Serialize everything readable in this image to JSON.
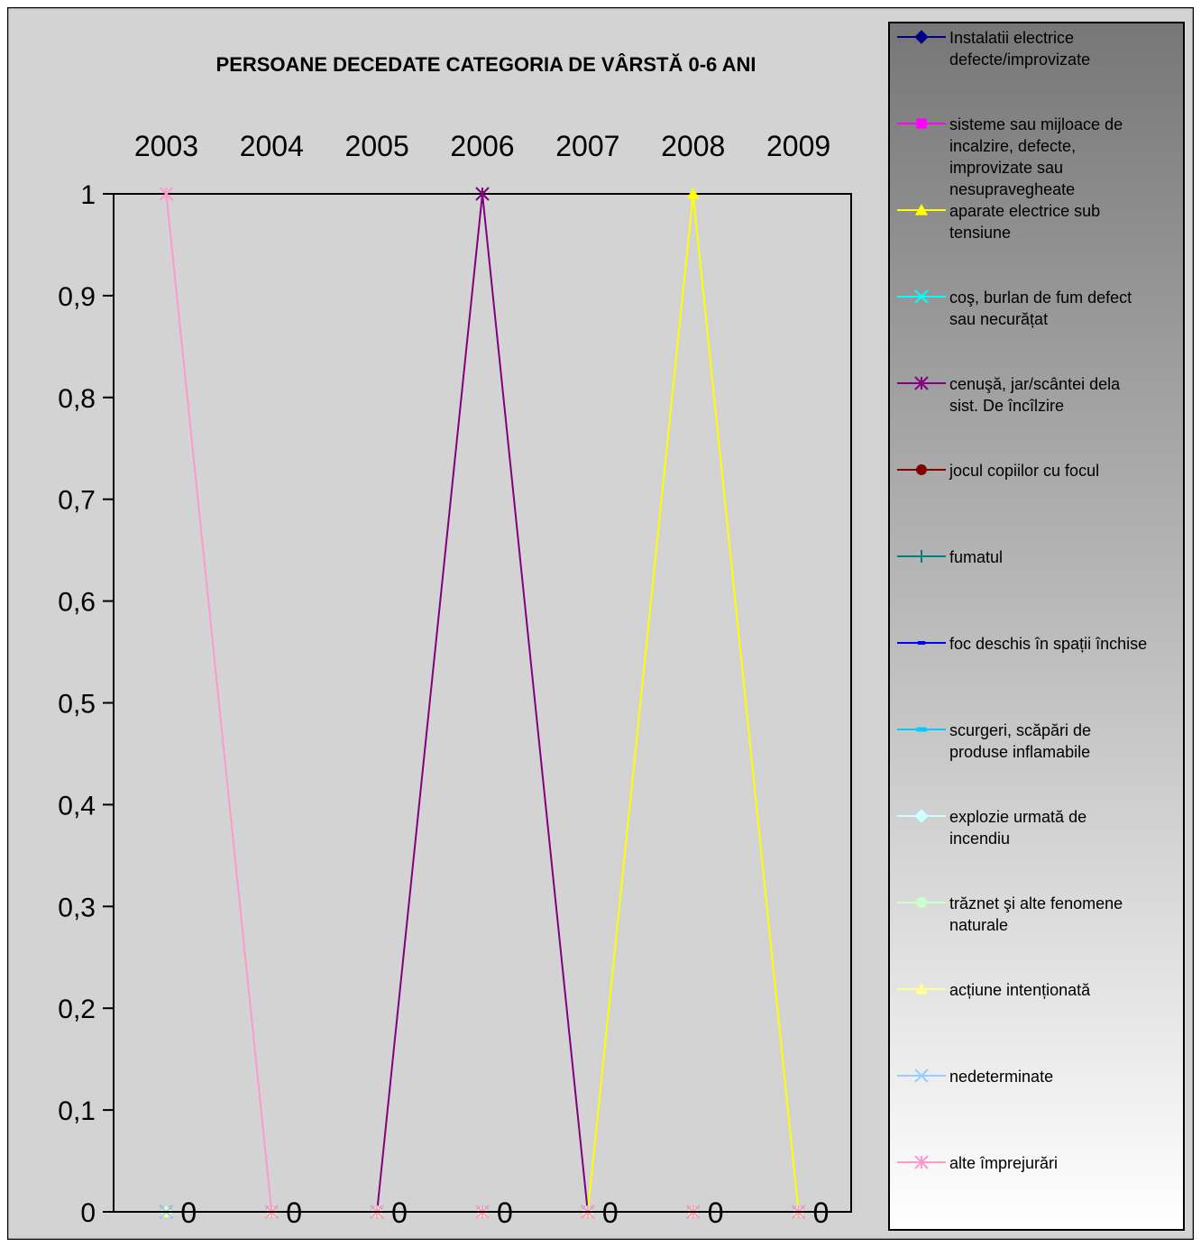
{
  "chart_data": {
    "type": "line",
    "title": "PERSOANE DECEDATE CATEGORIA DE VÂRSTĂ 0-6 ANI",
    "x": [
      "2003",
      "2004",
      "2005",
      "2006",
      "2007",
      "2008",
      "2009"
    ],
    "y_ticks": [
      "0",
      "0,1",
      "0,2",
      "0,3",
      "0,4",
      "0,5",
      "0,6",
      "0,7",
      "0,8",
      "0,9",
      "1"
    ],
    "ylim": [
      0,
      1
    ],
    "x_axis_position": "top",
    "grid": false,
    "legend_position": "right",
    "data_labels": [
      "0",
      "0",
      "0",
      "0",
      "0",
      "0",
      "0"
    ],
    "series": [
      {
        "name_lines": [
          "Instalatii electrice",
          "defecte/improvizate"
        ],
        "color": "#000080",
        "marker": "diamond",
        "values": [
          0,
          0,
          0,
          0,
          0,
          0,
          0
        ]
      },
      {
        "name_lines": [
          "sisteme sau mijloace de",
          "incalzire, defecte,",
          "improvizate sau",
          "nesupravegheate"
        ],
        "color": "#ff00ff",
        "marker": "square",
        "values": [
          0,
          0,
          0,
          0,
          0,
          0,
          0
        ]
      },
      {
        "name_lines": [
          "aparate electrice sub",
          "tensiune"
        ],
        "color": "#ffff00",
        "marker": "triangle",
        "values": [
          0,
          0,
          0,
          0,
          0,
          1,
          0
        ]
      },
      {
        "name_lines": [
          "coş, burlan de fum defect",
          "sau necurățat"
        ],
        "color": "#00ffff",
        "marker": "x",
        "values": [
          0,
          0,
          0,
          0,
          0,
          0,
          0
        ]
      },
      {
        "name_lines": [
          "cenuşă, jar/scântei dela",
          "sist. De încîlzire"
        ],
        "color": "#800080",
        "marker": "star",
        "values": [
          0,
          0,
          0,
          1,
          0,
          0,
          0
        ]
      },
      {
        "name_lines": [
          "jocul copiilor cu focul"
        ],
        "color": "#800000",
        "marker": "circle",
        "values": [
          0,
          0,
          0,
          0,
          0,
          0,
          0
        ]
      },
      {
        "name_lines": [
          "fumatul"
        ],
        "color": "#008080",
        "marker": "plus",
        "values": [
          0,
          0,
          0,
          0,
          0,
          0,
          0
        ]
      },
      {
        "name_lines": [
          "foc deschis în spații închise"
        ],
        "color": "#0000ff",
        "marker": "dash",
        "values": [
          0,
          0,
          0,
          0,
          0,
          0,
          0
        ]
      },
      {
        "name_lines": [
          "scurgeri, scăpări de",
          "produse inflamabile"
        ],
        "color": "#00ccff",
        "marker": "bar",
        "values": [
          0,
          0,
          0,
          0,
          0,
          0,
          0
        ]
      },
      {
        "name_lines": [
          "explozie urmată de",
          "incendiu"
        ],
        "color": "#ccffff",
        "marker": "diamond",
        "values": [
          0,
          0,
          0,
          0,
          0,
          0,
          0
        ]
      },
      {
        "name_lines": [
          "trăznet şi alte fenomene",
          "naturale"
        ],
        "color": "#ccffcc",
        "marker": "circle",
        "values": [
          0,
          0,
          0,
          0,
          0,
          0,
          0
        ]
      },
      {
        "name_lines": [
          "acțiune intenționată"
        ],
        "color": "#ffff99",
        "marker": "triangle",
        "values": [
          0,
          0,
          0,
          0,
          0,
          0,
          0
        ]
      },
      {
        "name_lines": [
          "nedeterminate"
        ],
        "color": "#99ccff",
        "marker": "x",
        "values": [
          0,
          0,
          0,
          0,
          0,
          0,
          0
        ]
      },
      {
        "name_lines": [
          "alte împrejurări"
        ],
        "color": "#ff99cc",
        "marker": "star",
        "values": [
          1,
          0,
          0,
          0,
          0,
          0,
          0
        ]
      }
    ],
    "colors": {
      "plot_background": "#d3d3d3",
      "chart_background": "#d3d3d3",
      "legend_gradient_top": "#777777",
      "legend_gradient_bottom": "#ffffff"
    }
  }
}
